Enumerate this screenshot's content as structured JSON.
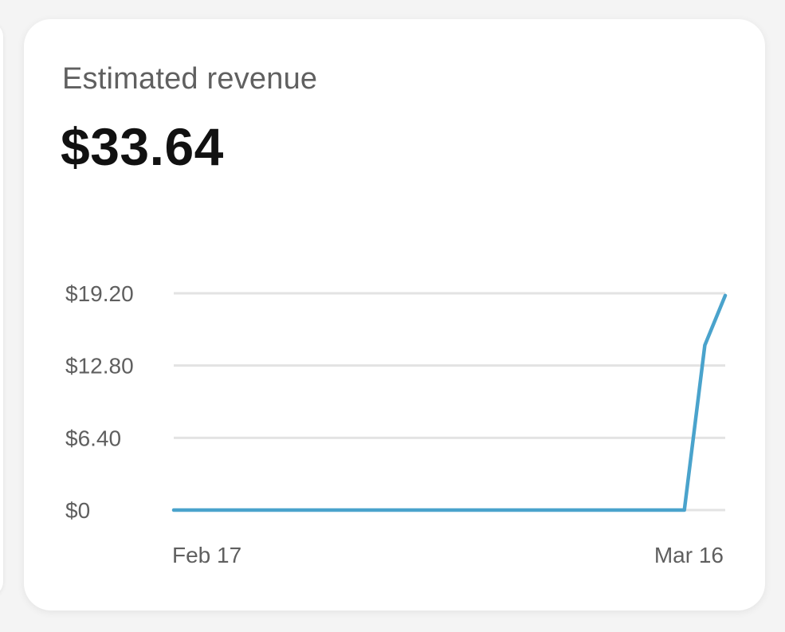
{
  "card": {
    "title": "Estimated revenue",
    "value": "$33.64"
  },
  "chart_data": {
    "type": "line",
    "title": "Estimated revenue",
    "xlabel": "",
    "ylabel": "",
    "ylim": [
      0,
      19.2
    ],
    "y_ticks": [
      {
        "label": "$0",
        "value": 0
      },
      {
        "label": "$6.40",
        "value": 6.4
      },
      {
        "label": "$12.80",
        "value": 12.8
      },
      {
        "label": "$19.20",
        "value": 19.2
      }
    ],
    "x_ticks": [
      {
        "label": "Feb 17",
        "index": 0
      },
      {
        "label": "Mar 16",
        "index": 27
      }
    ],
    "grid": true,
    "series": [
      {
        "name": "Estimated revenue",
        "color": "#4aa3cc",
        "values": [
          0,
          0,
          0,
          0,
          0,
          0,
          0,
          0,
          0,
          0,
          0,
          0,
          0,
          0,
          0,
          0,
          0,
          0,
          0,
          0,
          0,
          0,
          0,
          0,
          0,
          0,
          14.6,
          19.0
        ]
      }
    ]
  },
  "colors": {
    "line": "#4aa3cc",
    "grid": "#e3e3e3",
    "title": "#606060",
    "value": "#111111"
  }
}
